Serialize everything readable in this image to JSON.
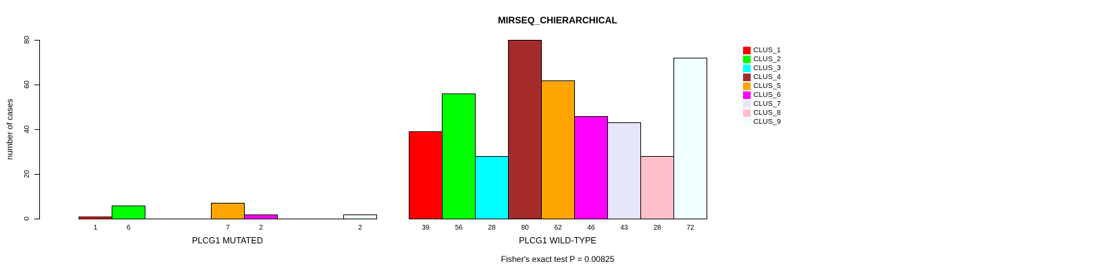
{
  "chart_data": {
    "type": "bar",
    "title": "MIRSEQ_CHIERARCHICAL",
    "ylabel": "number of cases",
    "xlabel": "",
    "ylim": [
      0,
      80
    ],
    "yticks": [
      0,
      20,
      40,
      60,
      80
    ],
    "grid": false,
    "legend_position": "right",
    "legend_entries": [
      "CLUS_1",
      "CLUS_2",
      "CLUS_3",
      "CLUS_4",
      "CLUS_5",
      "CLUS_6",
      "CLUS_7",
      "CLUS_8",
      "CLUS_9"
    ],
    "colors": [
      "#FF0000",
      "#00FF00",
      "#00FFFF",
      "#A52A2A",
      "#FFA500",
      "#FF00FF",
      "#E6E6FA",
      "#FFC0CB",
      "#F0FFFF"
    ],
    "bar_border_color": "#000000",
    "groups": [
      {
        "label": "PLCG1 MUTATED",
        "values": [
          1,
          6,
          0,
          0,
          7,
          2,
          0,
          0,
          2
        ]
      },
      {
        "label": "PLCG1 WILD-TYPE",
        "values": [
          39,
          56,
          28,
          80,
          62,
          46,
          43,
          28,
          72
        ]
      }
    ],
    "bar_value_labels_note": "values shown under each nonzero bar",
    "annotation": "Fisher's exact test P = 0.00825"
  }
}
